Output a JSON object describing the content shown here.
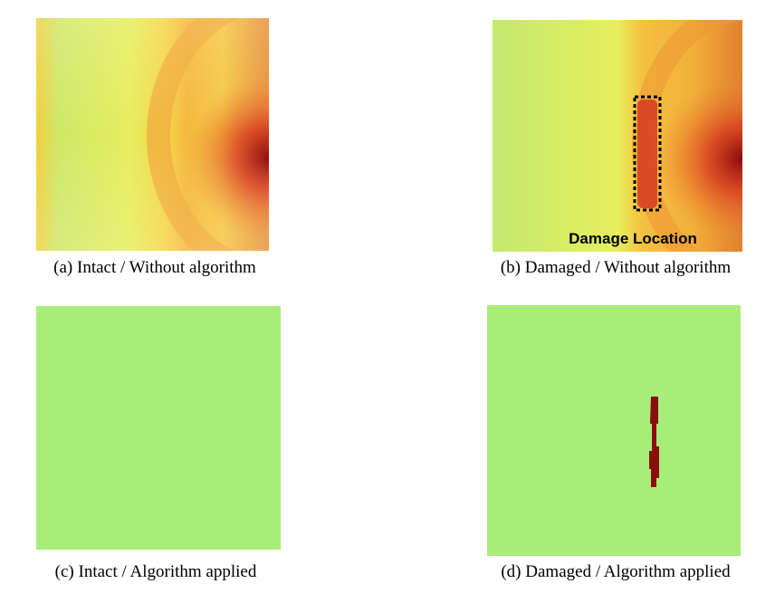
{
  "panels": [
    {
      "caption": "(a) Intact / Without algorithm"
    },
    {
      "caption": "(b) Damaged / Without algorithm",
      "annotation": "Damage Location"
    },
    {
      "caption": "(c) Intact / Algorithm applied"
    },
    {
      "caption": "(d) Damaged / Algorithm applied"
    }
  ]
}
